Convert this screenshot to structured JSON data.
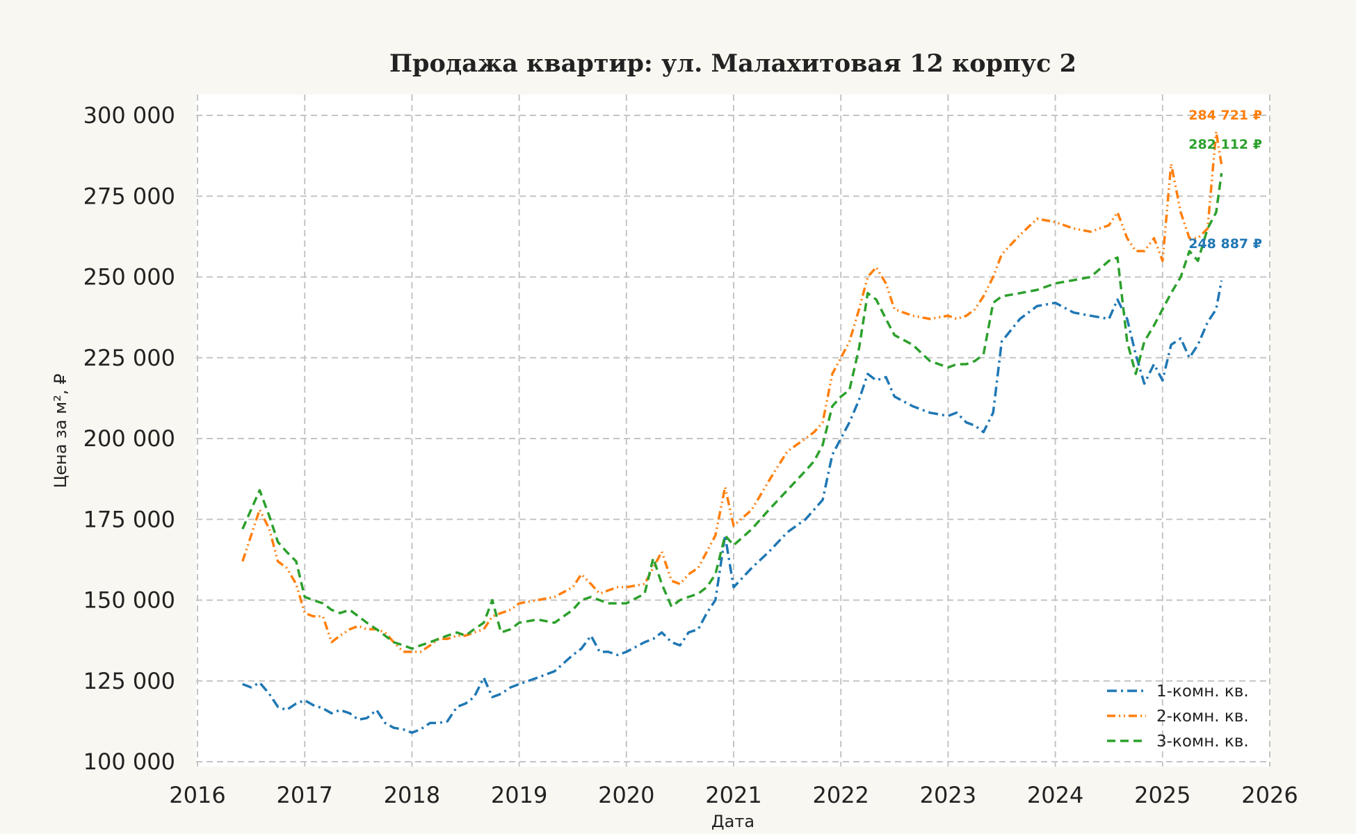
{
  "chart_data": {
    "type": "line",
    "title": "Продажа квартир: ул. Малахитовая 12 корпус 2",
    "xlabel": "Дата",
    "ylabel": "Цена за м², ₽",
    "xlim": [
      2016,
      2026
    ],
    "ylim": [
      100000,
      300000
    ],
    "x_ticks": [
      2016,
      2017,
      2018,
      2019,
      2020,
      2021,
      2022,
      2023,
      2024,
      2025,
      2026
    ],
    "y_ticks": [
      100000,
      125000,
      150000,
      175000,
      200000,
      225000,
      250000,
      275000,
      300000
    ],
    "x_tick_labels": [
      "2016",
      "2017",
      "2018",
      "2019",
      "2020",
      "2021",
      "2022",
      "2023",
      "2024",
      "2025",
      "2026"
    ],
    "y_tick_labels": [
      "100 000",
      "125 000",
      "150 000",
      "175 000",
      "200 000",
      "225 000",
      "250 000",
      "275 000",
      "300 000"
    ],
    "grid": true,
    "legend_position": "bottom-right",
    "series": [
      {
        "name": "1-комн. кв.",
        "color": "#1f77b4",
        "style": "dashdot",
        "end_label": "248 887 ₽",
        "x": [
          2016.42,
          2016.5,
          2016.58,
          2016.67,
          2016.75,
          2016.83,
          2016.92,
          2017.0,
          2017.08,
          2017.17,
          2017.25,
          2017.33,
          2017.42,
          2017.5,
          2017.58,
          2017.67,
          2017.75,
          2017.83,
          2017.92,
          2018.0,
          2018.08,
          2018.17,
          2018.25,
          2018.33,
          2018.42,
          2018.5,
          2018.58,
          2018.67,
          2018.75,
          2018.83,
          2018.92,
          2019.0,
          2019.17,
          2019.33,
          2019.5,
          2019.58,
          2019.67,
          2019.75,
          2019.83,
          2019.92,
          2020.0,
          2020.17,
          2020.25,
          2020.33,
          2020.42,
          2020.5,
          2020.58,
          2020.67,
          2020.75,
          2020.83,
          2020.92,
          2021.0,
          2021.17,
          2021.33,
          2021.5,
          2021.67,
          2021.75,
          2021.83,
          2021.92,
          2022.0,
          2022.08,
          2022.17,
          2022.25,
          2022.33,
          2022.42,
          2022.5,
          2022.67,
          2022.83,
          2023.0,
          2023.08,
          2023.17,
          2023.25,
          2023.33,
          2023.42,
          2023.5,
          2023.67,
          2023.83,
          2024.0,
          2024.17,
          2024.33,
          2024.5,
          2024.58,
          2024.67,
          2024.75,
          2024.83,
          2024.92,
          2025.0,
          2025.08,
          2025.17,
          2025.25,
          2025.33,
          2025.42,
          2025.5,
          2025.55
        ],
        "y": [
          124000,
          123000,
          124500,
          121000,
          117000,
          116000,
          118000,
          119000,
          117500,
          116500,
          115000,
          116000,
          115000,
          113000,
          113500,
          116000,
          112000,
          110500,
          110000,
          109000,
          110000,
          112000,
          112000,
          112500,
          117000,
          118000,
          120000,
          126000,
          120000,
          121000,
          123000,
          124000,
          126000,
          128000,
          133000,
          135000,
          139000,
          134000,
          134000,
          133000,
          134000,
          137000,
          138000,
          140000,
          137000,
          136000,
          140000,
          141000,
          146000,
          150000,
          170000,
          154000,
          160000,
          165000,
          171000,
          175000,
          178000,
          181000,
          195000,
          200000,
          205000,
          212000,
          220000,
          218000,
          219000,
          213000,
          210000,
          208000,
          207000,
          208000,
          205000,
          204000,
          202000,
          208000,
          230000,
          237000,
          241000,
          242000,
          239000,
          238000,
          237000,
          243000,
          237000,
          226000,
          217000,
          223000,
          218000,
          229000,
          231000,
          225000,
          229000,
          236000,
          240000,
          248887
        ]
      },
      {
        "name": "2-комн. кв.",
        "color": "#ff7f0e",
        "style": "dashdot-dots",
        "end_label": "284 721 ₽",
        "x": [
          2016.42,
          2016.5,
          2016.58,
          2016.67,
          2016.75,
          2016.83,
          2016.92,
          2017.0,
          2017.08,
          2017.17,
          2017.25,
          2017.33,
          2017.42,
          2017.5,
          2017.58,
          2017.67,
          2017.75,
          2017.83,
          2017.92,
          2018.0,
          2018.08,
          2018.17,
          2018.25,
          2018.33,
          2018.42,
          2018.5,
          2018.58,
          2018.67,
          2018.75,
          2018.83,
          2018.92,
          2019.0,
          2019.17,
          2019.33,
          2019.5,
          2019.58,
          2019.67,
          2019.75,
          2019.83,
          2019.92,
          2020.0,
          2020.17,
          2020.25,
          2020.33,
          2020.42,
          2020.5,
          2020.58,
          2020.67,
          2020.75,
          2020.83,
          2020.92,
          2021.0,
          2021.17,
          2021.33,
          2021.5,
          2021.67,
          2021.75,
          2021.83,
          2021.92,
          2022.0,
          2022.08,
          2022.17,
          2022.25,
          2022.33,
          2022.42,
          2022.5,
          2022.67,
          2022.83,
          2023.0,
          2023.08,
          2023.17,
          2023.25,
          2023.33,
          2023.42,
          2023.5,
          2023.67,
          2023.83,
          2024.0,
          2024.17,
          2024.33,
          2024.5,
          2024.58,
          2024.67,
          2024.75,
          2024.83,
          2024.92,
          2025.0,
          2025.08,
          2025.17,
          2025.25,
          2025.33,
          2025.42,
          2025.5,
          2025.55
        ],
        "y": [
          162000,
          170000,
          178000,
          172000,
          162000,
          160000,
          155000,
          146000,
          145000,
          145000,
          137000,
          139000,
          141000,
          142000,
          141000,
          141000,
          140000,
          137000,
          134000,
          134000,
          134000,
          136000,
          138000,
          138000,
          139000,
          139000,
          140000,
          141000,
          145000,
          146000,
          147000,
          149000,
          150000,
          151000,
          154000,
          158000,
          155000,
          152000,
          153000,
          154000,
          154000,
          155000,
          160000,
          165000,
          156000,
          155000,
          158000,
          160000,
          165000,
          170000,
          185000,
          173000,
          178000,
          187000,
          196000,
          200000,
          202000,
          205000,
          220000,
          225000,
          230000,
          240000,
          250000,
          253000,
          248000,
          240000,
          238000,
          237000,
          238000,
          237000,
          238000,
          240000,
          244000,
          250000,
          257000,
          263000,
          268000,
          267000,
          265000,
          264000,
          266000,
          270000,
          262000,
          258000,
          258000,
          262000,
          255000,
          285000,
          270000,
          262000,
          262000,
          265000,
          295000,
          284721
        ]
      },
      {
        "name": "3-комн. кв.",
        "color": "#2ca02c",
        "style": "dashed",
        "end_label": "282 112 ₽",
        "x": [
          2016.42,
          2016.5,
          2016.58,
          2016.67,
          2016.75,
          2016.83,
          2016.92,
          2017.0,
          2017.08,
          2017.17,
          2017.25,
          2017.33,
          2017.42,
          2017.5,
          2017.58,
          2017.67,
          2017.75,
          2017.83,
          2017.92,
          2018.0,
          2018.08,
          2018.17,
          2018.25,
          2018.33,
          2018.42,
          2018.5,
          2018.58,
          2018.67,
          2018.75,
          2018.83,
          2018.92,
          2019.0,
          2019.17,
          2019.33,
          2019.5,
          2019.58,
          2019.67,
          2019.75,
          2019.83,
          2019.92,
          2020.0,
          2020.17,
          2020.25,
          2020.33,
          2020.42,
          2020.5,
          2020.58,
          2020.67,
          2020.75,
          2020.83,
          2020.92,
          2021.0,
          2021.17,
          2021.33,
          2021.5,
          2021.67,
          2021.75,
          2021.83,
          2021.92,
          2022.0,
          2022.08,
          2022.17,
          2022.25,
          2022.33,
          2022.42,
          2022.5,
          2022.67,
          2022.83,
          2023.0,
          2023.08,
          2023.17,
          2023.25,
          2023.33,
          2023.42,
          2023.5,
          2023.67,
          2023.83,
          2024.0,
          2024.17,
          2024.33,
          2024.5,
          2024.58,
          2024.67,
          2024.75,
          2024.83,
          2024.92,
          2025.0,
          2025.08,
          2025.17,
          2025.25,
          2025.33,
          2025.42,
          2025.5,
          2025.55
        ],
        "y": [
          172000,
          178000,
          184000,
          176000,
          168000,
          165000,
          162000,
          151000,
          150000,
          149000,
          147000,
          146000,
          147000,
          145000,
          143000,
          141000,
          139000,
          137000,
          136000,
          135000,
          136000,
          137000,
          138000,
          139000,
          140000,
          139000,
          141000,
          143000,
          150000,
          140000,
          141000,
          143000,
          144000,
          143000,
          147000,
          150000,
          151000,
          150000,
          149000,
          149000,
          149000,
          152000,
          163000,
          155000,
          148000,
          150000,
          151000,
          152000,
          154000,
          158000,
          170000,
          167000,
          172000,
          178000,
          184000,
          190000,
          193000,
          198000,
          210000,
          213000,
          215000,
          228000,
          245000,
          243000,
          237000,
          232000,
          229000,
          224000,
          222000,
          223000,
          223000,
          224000,
          226000,
          242000,
          244000,
          245000,
          246000,
          248000,
          249000,
          250000,
          255000,
          256000,
          230000,
          220000,
          230000,
          235000,
          240000,
          245000,
          250000,
          258000,
          255000,
          265000,
          270000,
          282112
        ]
      }
    ]
  }
}
